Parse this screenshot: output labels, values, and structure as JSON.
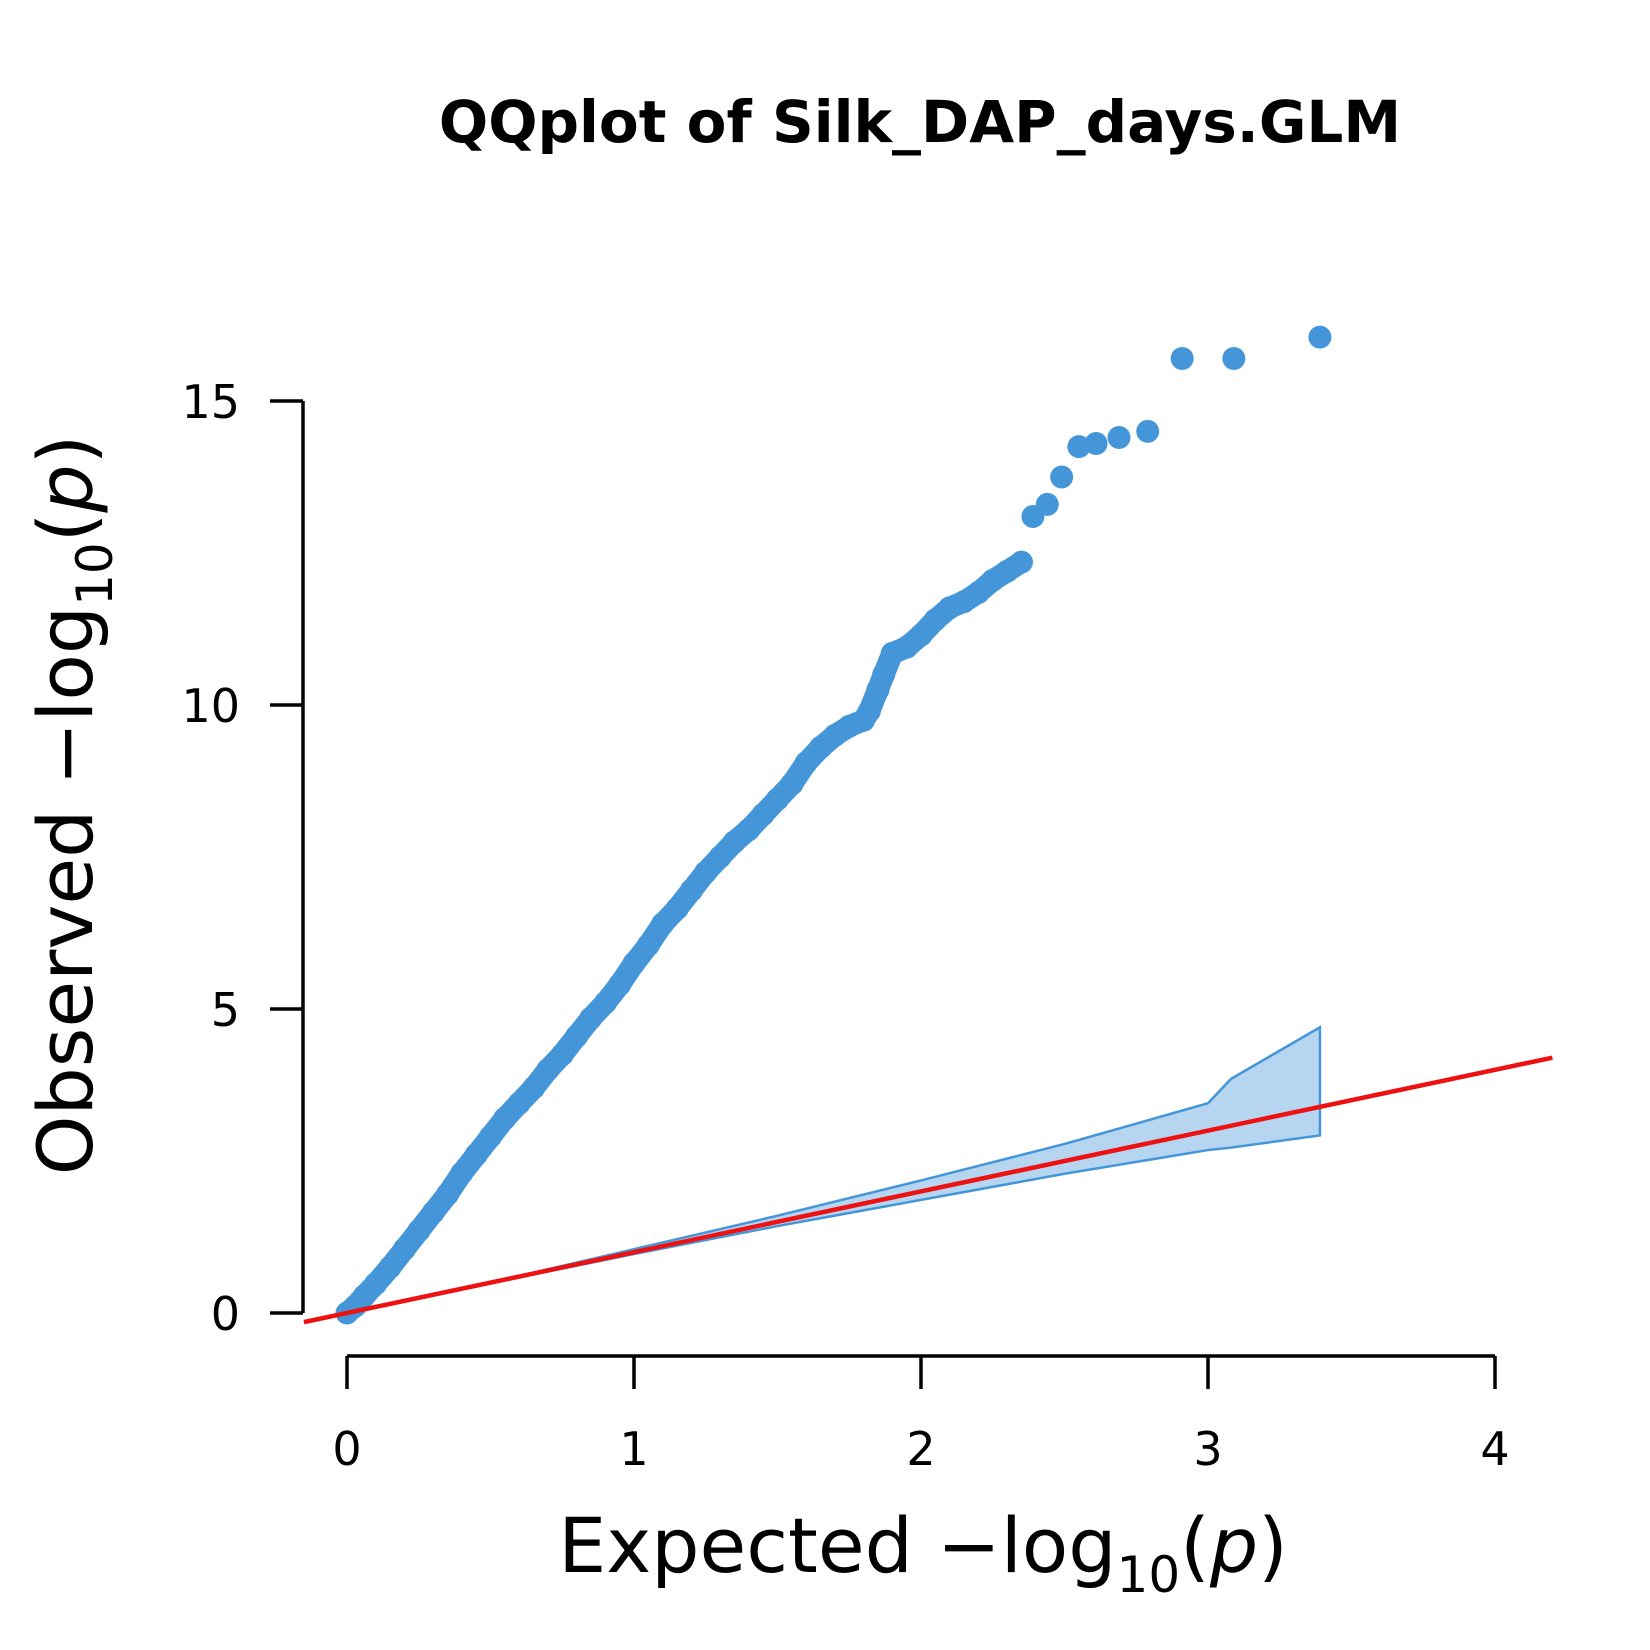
{
  "chart_data": {
    "type": "scatter",
    "title": "QQplot of Silk_DAP_days.GLM",
    "xlabel": {
      "prefix": "Expected  ",
      "minus": "−",
      "log": "log",
      "sub": "10",
      "open": "(",
      "var": "p",
      "close": ")"
    },
    "ylabel": {
      "prefix": "Observed  ",
      "minus": "−",
      "log": "log",
      "sub": "10",
      "open": "(",
      "var": "p",
      "close": ")"
    },
    "xlim": [
      0,
      4
    ],
    "ylim": [
      0,
      15
    ],
    "x_ticks": [
      "0",
      "1",
      "2",
      "3",
      "4"
    ],
    "y_ticks": [
      "0",
      "5",
      "10",
      "15"
    ],
    "point_color": "#4596d8",
    "reference_line": {
      "slope": 1,
      "intercept": 0,
      "color": "#ee1111"
    },
    "confidence_band": {
      "color": "#b5d5f1",
      "edge_color": "#4596d8",
      "x": [
        0,
        0.5,
        1,
        1.5,
        2,
        2.5,
        3,
        3.08,
        3.39
      ],
      "upper": [
        0,
        0.5,
        1.05,
        1.6,
        2.18,
        2.78,
        3.45,
        3.85,
        4.7
      ],
      "lower": [
        0,
        0.49,
        0.97,
        1.43,
        1.86,
        2.29,
        2.68,
        2.72,
        2.92
      ]
    },
    "series": [
      {
        "x": [
          0.0,
          0.03,
          0.06,
          0.1,
          0.15,
          0.2,
          0.25,
          0.3,
          0.35,
          0.4,
          0.45,
          0.5,
          0.55,
          0.6,
          0.65,
          0.7,
          0.75,
          0.8,
          0.85,
          0.9,
          0.95,
          1.0,
          1.05,
          1.1,
          1.15,
          1.2,
          1.25,
          1.3,
          1.35,
          1.4,
          1.45,
          1.5,
          1.55,
          1.6,
          1.65,
          1.7,
          1.75,
          1.8,
          1.82,
          1.85,
          1.87,
          1.9,
          1.95,
          2.0,
          2.05,
          2.1,
          2.15,
          2.2,
          2.25,
          2.3,
          2.35,
          2.39,
          2.44,
          2.49,
          2.55,
          2.61,
          2.69,
          2.79,
          2.91,
          3.09,
          3.39
        ],
        "y": [
          0.0,
          0.12,
          0.28,
          0.48,
          0.75,
          1.05,
          1.35,
          1.65,
          1.95,
          2.3,
          2.6,
          2.9,
          3.2,
          3.45,
          3.7,
          4.0,
          4.25,
          4.55,
          4.85,
          5.1,
          5.4,
          5.75,
          6.05,
          6.4,
          6.65,
          6.95,
          7.25,
          7.5,
          7.75,
          7.95,
          8.2,
          8.45,
          8.7,
          9.05,
          9.3,
          9.5,
          9.65,
          9.75,
          9.9,
          10.25,
          10.5,
          10.85,
          10.95,
          11.15,
          11.4,
          11.6,
          11.7,
          11.85,
          12.05,
          12.2,
          12.35,
          13.1,
          13.3,
          13.75,
          14.25,
          14.3,
          14.4,
          14.5,
          15.7,
          15.7,
          16.05
        ]
      }
    ]
  }
}
